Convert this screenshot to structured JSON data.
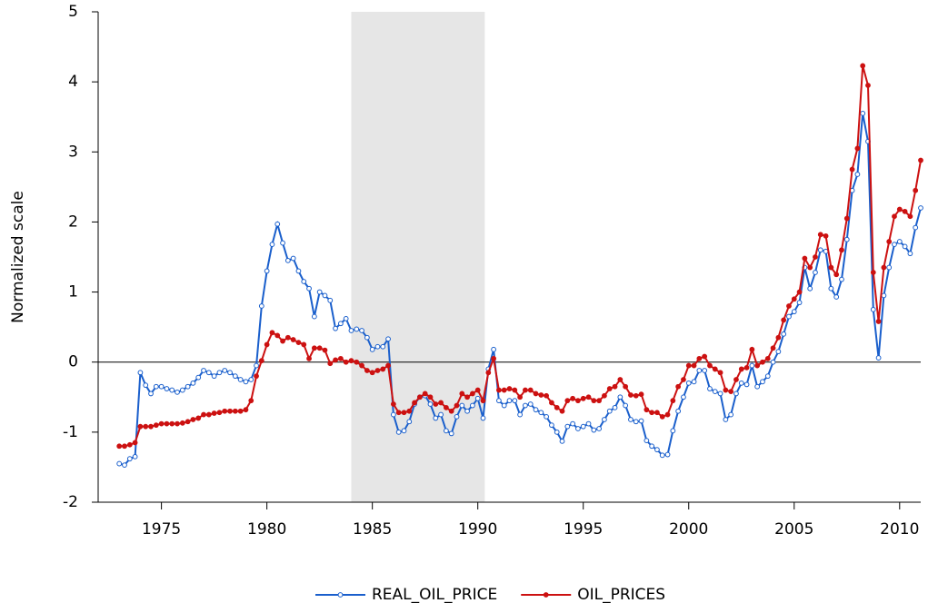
{
  "chart_data": {
    "type": "line",
    "y_label": "Normalized scale",
    "xlim": [
      1972,
      2011
    ],
    "ylim": [
      -2,
      5
    ],
    "xticks": [
      1975,
      1980,
      1985,
      1990,
      1995,
      2000,
      2005,
      2010
    ],
    "yticks": [
      -2,
      -1,
      0,
      1,
      2,
      3,
      4,
      5
    ],
    "zero_line": true,
    "shaded": [
      1984,
      1990.33
    ],
    "x": [
      1973,
      1973.25,
      1973.5,
      1973.75,
      1974,
      1974.25,
      1974.5,
      1974.75,
      1975,
      1975.25,
      1975.5,
      1975.75,
      1976,
      1976.25,
      1976.5,
      1976.75,
      1977,
      1977.25,
      1977.5,
      1977.75,
      1978,
      1978.25,
      1978.5,
      1978.75,
      1979,
      1979.25,
      1979.5,
      1979.75,
      1980,
      1980.25,
      1980.5,
      1980.75,
      1981,
      1981.25,
      1981.5,
      1981.75,
      1982,
      1982.25,
      1982.5,
      1982.75,
      1983,
      1983.25,
      1983.5,
      1983.75,
      1984,
      1984.25,
      1984.5,
      1984.75,
      1985,
      1985.25,
      1985.5,
      1985.75,
      1986,
      1986.25,
      1986.5,
      1986.75,
      1987,
      1987.25,
      1987.5,
      1987.75,
      1988,
      1988.25,
      1988.5,
      1988.75,
      1989,
      1989.25,
      1989.5,
      1989.75,
      1990,
      1990.25,
      1990.5,
      1990.75,
      1991,
      1991.25,
      1991.5,
      1991.75,
      1992,
      1992.25,
      1992.5,
      1992.75,
      1993,
      1993.25,
      1993.5,
      1993.75,
      1994,
      1994.25,
      1994.5,
      1994.75,
      1995,
      1995.25,
      1995.5,
      1995.75,
      1996,
      1996.25,
      1996.5,
      1996.75,
      1997,
      1997.25,
      1997.5,
      1997.75,
      1998,
      1998.25,
      1998.5,
      1998.75,
      1999,
      1999.25,
      1999.5,
      1999.75,
      2000,
      2000.25,
      2000.5,
      2000.75,
      2001,
      2001.25,
      2001.5,
      2001.75,
      2002,
      2002.25,
      2002.5,
      2002.75,
      2003,
      2003.25,
      2003.5,
      2003.75,
      2004,
      2004.25,
      2004.5,
      2004.75,
      2005,
      2005.25,
      2005.5,
      2005.75,
      2006,
      2006.25,
      2006.5,
      2006.75,
      2007,
      2007.25,
      2007.5,
      2007.75,
      2008,
      2008.25,
      2008.5,
      2008.75,
      2009,
      2009.25,
      2009.5,
      2009.75,
      2010,
      2010.25,
      2010.5,
      2010.75,
      2011
    ],
    "series": [
      {
        "name": "REAL_OIL_PRICE",
        "color": "#1a5fcc",
        "marker": "open",
        "values": [
          -1.45,
          -1.47,
          -1.38,
          -1.35,
          -0.15,
          -0.33,
          -0.45,
          -0.35,
          -0.35,
          -0.38,
          -0.4,
          -0.43,
          -0.4,
          -0.35,
          -0.3,
          -0.22,
          -0.12,
          -0.15,
          -0.2,
          -0.15,
          -0.12,
          -0.15,
          -0.2,
          -0.25,
          -0.28,
          -0.25,
          -0.05,
          0.8,
          1.3,
          1.68,
          1.97,
          1.7,
          1.45,
          1.48,
          1.3,
          1.15,
          1.05,
          0.65,
          1.0,
          0.95,
          0.88,
          0.48,
          0.55,
          0.62,
          0.45,
          0.47,
          0.45,
          0.35,
          0.18,
          0.22,
          0.22,
          0.33,
          -0.75,
          -1.0,
          -0.98,
          -0.85,
          -0.6,
          -0.5,
          -0.48,
          -0.6,
          -0.8,
          -0.75,
          -0.98,
          -1.02,
          -0.78,
          -0.62,
          -0.7,
          -0.62,
          -0.52,
          -0.8,
          -0.1,
          0.18,
          -0.55,
          -0.62,
          -0.55,
          -0.55,
          -0.75,
          -0.62,
          -0.6,
          -0.68,
          -0.72,
          -0.78,
          -0.9,
          -1.0,
          -1.13,
          -0.92,
          -0.88,
          -0.95,
          -0.92,
          -0.88,
          -0.97,
          -0.95,
          -0.82,
          -0.7,
          -0.65,
          -0.5,
          -0.62,
          -0.82,
          -0.85,
          -0.84,
          -1.12,
          -1.2,
          -1.25,
          -1.33,
          -1.32,
          -0.98,
          -0.7,
          -0.5,
          -0.3,
          -0.28,
          -0.12,
          -0.12,
          -0.38,
          -0.42,
          -0.45,
          -0.82,
          -0.75,
          -0.45,
          -0.3,
          -0.32,
          -0.05,
          -0.35,
          -0.28,
          -0.2,
          0.0,
          0.15,
          0.4,
          0.65,
          0.72,
          0.85,
          1.35,
          1.05,
          1.28,
          1.6,
          1.58,
          1.05,
          0.93,
          1.18,
          1.75,
          2.45,
          2.68,
          3.55,
          3.15,
          0.75,
          0.06,
          0.95,
          1.35,
          1.68,
          1.72,
          1.65,
          1.55,
          1.92,
          2.2
        ]
      },
      {
        "name": "OIL_PRICES",
        "color": "#cc1111",
        "marker": "filled",
        "values": [
          -1.2,
          -1.2,
          -1.18,
          -1.15,
          -0.92,
          -0.92,
          -0.92,
          -0.9,
          -0.88,
          -0.88,
          -0.88,
          -0.88,
          -0.87,
          -0.85,
          -0.82,
          -0.8,
          -0.75,
          -0.75,
          -0.73,
          -0.72,
          -0.7,
          -0.7,
          -0.7,
          -0.7,
          -0.68,
          -0.55,
          -0.2,
          0.02,
          0.25,
          0.42,
          0.38,
          0.3,
          0.35,
          0.32,
          0.28,
          0.25,
          0.05,
          0.2,
          0.2,
          0.17,
          -0.02,
          0.03,
          0.05,
          0.0,
          0.02,
          0.0,
          -0.05,
          -0.12,
          -0.15,
          -0.12,
          -0.1,
          -0.05,
          -0.6,
          -0.72,
          -0.72,
          -0.7,
          -0.58,
          -0.5,
          -0.45,
          -0.5,
          -0.6,
          -0.58,
          -0.65,
          -0.7,
          -0.62,
          -0.45,
          -0.5,
          -0.45,
          -0.4,
          -0.55,
          -0.15,
          0.05,
          -0.4,
          -0.4,
          -0.38,
          -0.4,
          -0.5,
          -0.4,
          -0.4,
          -0.45,
          -0.47,
          -0.48,
          -0.58,
          -0.65,
          -0.7,
          -0.55,
          -0.52,
          -0.55,
          -0.52,
          -0.5,
          -0.55,
          -0.55,
          -0.48,
          -0.38,
          -0.35,
          -0.25,
          -0.35,
          -0.47,
          -0.48,
          -0.46,
          -0.68,
          -0.72,
          -0.72,
          -0.78,
          -0.75,
          -0.55,
          -0.35,
          -0.25,
          -0.05,
          -0.05,
          0.05,
          0.08,
          -0.05,
          -0.1,
          -0.15,
          -0.4,
          -0.42,
          -0.25,
          -0.1,
          -0.08,
          0.18,
          -0.05,
          0.0,
          0.05,
          0.2,
          0.35,
          0.6,
          0.8,
          0.9,
          1.0,
          1.48,
          1.35,
          1.5,
          1.82,
          1.8,
          1.35,
          1.25,
          1.6,
          2.05,
          2.75,
          3.05,
          4.23,
          3.95,
          1.28,
          0.58,
          1.35,
          1.72,
          2.08,
          2.18,
          2.15,
          2.08,
          2.45,
          2.88
        ]
      }
    ]
  }
}
